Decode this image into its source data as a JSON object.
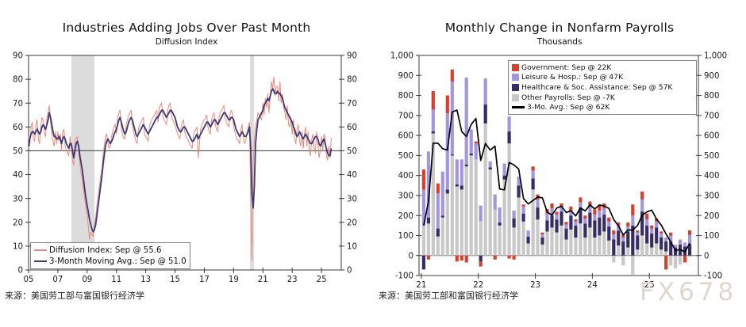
{
  "left_chart": {
    "title": "Industries Adding Jobs Over Past Month",
    "subtitle": "Diffusion Index",
    "source": "来源：美国劳工部与富国银行经济学",
    "legend": [
      {
        "label": "Diffusion Index: Sep @ 55.6",
        "color": "#E8897C",
        "swatch": "line"
      },
      {
        "label": "3-Month Moving Avg.: Sep @ 51.0",
        "color": "#3C3873",
        "swatch": "line"
      }
    ]
  },
  "right_chart": {
    "title": "Monthly Change in Nonfarm Payrolls",
    "subtitle": "Thousands",
    "source": "来源：美国劳工部和富国银行经济学",
    "legend": [
      {
        "label": "Government: Sep @ 22K",
        "color": "#D8402C",
        "swatch": "box"
      },
      {
        "label": "Leisure & Hosp.: Sep @ 47K",
        "color": "#A495E0",
        "swatch": "box"
      },
      {
        "label": "Healthcare & Soc. Assistance: Sep @ 57K",
        "color": "#342D69",
        "swatch": "box"
      },
      {
        "label": "Other Payrolls: Sep @ -7K",
        "color": "#C8C8C8",
        "swatch": "box"
      },
      {
        "label": "3-Mo. Avg.: Sep @ 62K",
        "color": "#000000",
        "swatch": "line"
      }
    ]
  },
  "watermark": "FX678",
  "chart_data": [
    {
      "type": "line",
      "title": "Industries Adding Jobs Over Past Month",
      "subtitle": "Diffusion Index",
      "x_start": 2005.0,
      "x_step_months": 1,
      "xlim": [
        2005.0,
        2026.35
      ],
      "ylim": [
        0,
        90
      ],
      "y_ticks": [
        0,
        10,
        20,
        30,
        40,
        50,
        60,
        70,
        80,
        90
      ],
      "x_tick_years": [
        2005,
        2007,
        2009,
        2011,
        2013,
        2015,
        2017,
        2019,
        2021,
        2023,
        2025
      ],
      "x_tick_labels": [
        "05",
        "07",
        "09",
        "11",
        "13",
        "15",
        "17",
        "19",
        "21",
        "23",
        "25"
      ],
      "reference_line": 50,
      "recession_bands": [
        [
          2007.92,
          2009.5
        ],
        [
          2020.12,
          2020.4
        ]
      ],
      "grid": false,
      "legend_position": "lower-left",
      "series": [
        {
          "name": "Diffusion Index",
          "latest": "Sep @ 55.6",
          "color": "#E8897C",
          "width": 1,
          "values": [
            56,
            52,
            60,
            62,
            55,
            54,
            61,
            63,
            55,
            53,
            60,
            64,
            63,
            57,
            56,
            64,
            66,
            69,
            62,
            58,
            54,
            52,
            58,
            53,
            58,
            54,
            57,
            50,
            58,
            59,
            52,
            50,
            49,
            48,
            56,
            51,
            46,
            44,
            54,
            55,
            56,
            49,
            45,
            41,
            38,
            34,
            30,
            26,
            23,
            18,
            13,
            16,
            15,
            14,
            19,
            22,
            27,
            31,
            35,
            39,
            42,
            48,
            52,
            56,
            57,
            53,
            51,
            52,
            56,
            58,
            60,
            61,
            57,
            64,
            66,
            67,
            59,
            57,
            55,
            55,
            61,
            63,
            65,
            66,
            67,
            61,
            58,
            56,
            54,
            53,
            59,
            61,
            62,
            63,
            64,
            57,
            56,
            55,
            54,
            60,
            62,
            63,
            64,
            65,
            66,
            67,
            62,
            68,
            69,
            70,
            65,
            63,
            62,
            61,
            67,
            69,
            70,
            65,
            63,
            62,
            61,
            59,
            57,
            56,
            55,
            60,
            62,
            63,
            58,
            56,
            55,
            54,
            53,
            52,
            51,
            56,
            58,
            59,
            60,
            47,
            53,
            59,
            61,
            62,
            63,
            64,
            65,
            60,
            58,
            57,
            63,
            65,
            66,
            61,
            59,
            58,
            64,
            66,
            67,
            68,
            69,
            64,
            62,
            61,
            60,
            65,
            67,
            66,
            60,
            58,
            56,
            55,
            54,
            53,
            59,
            61,
            55,
            53,
            54,
            58,
            60,
            62,
            30,
            4,
            45,
            55,
            60,
            63,
            66,
            65,
            64,
            63,
            70,
            65,
            72,
            68,
            74,
            66,
            73,
            79,
            76,
            81,
            73,
            77,
            77,
            71,
            79,
            70,
            74,
            68,
            66,
            63,
            69,
            61,
            60,
            64,
            57,
            63,
            55,
            53,
            59,
            61,
            54,
            52,
            58,
            51,
            57,
            60,
            52,
            58,
            50,
            48,
            55,
            57,
            51,
            49,
            58,
            54,
            47,
            50,
            56,
            50,
            57,
            55,
            48,
            46,
            52,
            47,
            55.6
          ]
        },
        {
          "name": "3-Month Moving Avg.",
          "latest": "Sep @ 51.0",
          "color": "#3C3873",
          "width": 1.8,
          "values": [
            52,
            55,
            57,
            58,
            58,
            57,
            58,
            59,
            58,
            57,
            58,
            60,
            61,
            60,
            59,
            61,
            63,
            66,
            64,
            61,
            58,
            56,
            56,
            55,
            55,
            56,
            55,
            53,
            55,
            56,
            55,
            53,
            52,
            51,
            53,
            53,
            50,
            47,
            50,
            53,
            54,
            52,
            48,
            45,
            42,
            38,
            34,
            30,
            27,
            24,
            21,
            19,
            17,
            16,
            17,
            19,
            23,
            27,
            31,
            35,
            39,
            44,
            48,
            52,
            54,
            55,
            54,
            53,
            54,
            55,
            57,
            58,
            59,
            61,
            63,
            64,
            62,
            60,
            58,
            57,
            58,
            60,
            62,
            63,
            64,
            63,
            61,
            59,
            57,
            56,
            57,
            58,
            59,
            60,
            61,
            60,
            59,
            58,
            57,
            58,
            59,
            60,
            61,
            62,
            63,
            64,
            64,
            65,
            66,
            67,
            67,
            66,
            65,
            64,
            65,
            66,
            67,
            67,
            66,
            65,
            64,
            62,
            60,
            59,
            58,
            58,
            59,
            60,
            60,
            59,
            58,
            57,
            56,
            55,
            54,
            54,
            55,
            56,
            57,
            55,
            56,
            57,
            58,
            59,
            60,
            61,
            62,
            62,
            61,
            60,
            61,
            62,
            63,
            63,
            62,
            61,
            62,
            63,
            64,
            65,
            66,
            66,
            65,
            64,
            63,
            63,
            64,
            64,
            63,
            61,
            59,
            58,
            57,
            56,
            57,
            58,
            57,
            56,
            56,
            57,
            58,
            60,
            51,
            32,
            26,
            35,
            53,
            59,
            63,
            64,
            65,
            66,
            67,
            69,
            70,
            71,
            72,
            71,
            73,
            75,
            76,
            75,
            74,
            74,
            75,
            74,
            74,
            73,
            72,
            70,
            68,
            67,
            66,
            65,
            64,
            63,
            62,
            60,
            59,
            57,
            56,
            57,
            58,
            57,
            56,
            55,
            56,
            57,
            56,
            55,
            54,
            53,
            53,
            54,
            55,
            56,
            56,
            55,
            53,
            52,
            53,
            54,
            55,
            53,
            51,
            49,
            48,
            48,
            51
          ]
        }
      ]
    },
    {
      "type": "stacked_bar_line",
      "title": "Monthly Change in Nonfarm Payrolls",
      "subtitle": "Thousands",
      "x_start": 2021.0,
      "x_step_months": 1,
      "xlim": [
        2020.96,
        2025.86
      ],
      "ylim": [
        -100,
        1000
      ],
      "y_ticks": [
        -100,
        0,
        100,
        200,
        300,
        400,
        500,
        600,
        700,
        800,
        900,
        1000
      ],
      "y_tick_labels": [
        "-100",
        "0",
        "100",
        "200",
        "300",
        "400",
        "500",
        "600",
        "700",
        "800",
        "900",
        "1,000"
      ],
      "x_tick_years": [
        2021,
        2022,
        2023,
        2024,
        2025
      ],
      "x_tick_labels": [
        "21",
        "22",
        "23",
        "24",
        "25"
      ],
      "grid": false,
      "legend_position": "upper-right",
      "stack_order": [
        "other",
        "healthcare",
        "leisure",
        "government"
      ],
      "bar_series": {
        "government": {
          "name": "Government",
          "latest": "Sep @ 22K",
          "color": "#D8402C",
          "values": [
            100,
            -20,
            92,
            50,
            0,
            90,
            60,
            -30,
            -25,
            -35,
            0,
            10,
            -25,
            0,
            0,
            -20,
            0,
            0,
            -15,
            -20,
            0,
            10,
            0,
            20,
            25,
            10,
            22,
            25,
            13,
            15,
            13,
            20,
            10,
            25,
            15,
            25,
            25,
            30,
            25,
            20,
            20,
            15,
            15,
            20,
            55,
            10,
            40,
            30,
            15,
            15,
            10,
            -70,
            15,
            0,
            0,
            -35,
            22
          ]
        },
        "leisure": {
          "name": "Leisure & Hosp.",
          "latest": "Sep @ 47K",
          "color": "#A495E0",
          "values": [
            180,
            330,
            110,
            175,
            220,
            380,
            365,
            125,
            130,
            435,
            120,
            80,
            80,
            130,
            30,
            75,
            75,
            60,
            75,
            40,
            45,
            35,
            30,
            40,
            40,
            15,
            35,
            35,
            25,
            25,
            20,
            25,
            20,
            25,
            25,
            30,
            30,
            35,
            30,
            25,
            25,
            25,
            20,
            25,
            50,
            15,
            60,
            30,
            25,
            30,
            20,
            20,
            30,
            15,
            25,
            20,
            47
          ]
        },
        "healthcare": {
          "name": "Healthcare & Soc. Assistance",
          "latest": "Sep @ 57K",
          "color": "#342D69",
          "values": [
            -70,
            30,
            10,
            40,
            10,
            20,
            5,
            10,
            20,
            10,
            10,
            0,
            -30,
            95,
            10,
            0,
            15,
            20,
            60,
            45,
            60,
            40,
            35,
            55,
            60,
            35,
            55,
            60,
            65,
            70,
            55,
            70,
            60,
            80,
            70,
            75,
            85,
            90,
            85,
            70,
            80,
            75,
            70,
            80,
            150,
            70,
            120,
            90,
            70,
            80,
            60,
            50,
            70,
            40,
            55,
            45,
            57
          ]
        },
        "other": {
          "name": "Other Payrolls",
          "latest": "Sep @ -7K",
          "color": "#C8C8C8",
          "values": [
            150,
            160,
            610,
            95,
            190,
            310,
            500,
            345,
            330,
            445,
            500,
            480,
            170,
            660,
            430,
            230,
            150,
            380,
            560,
            140,
            290,
            170,
            60,
            330,
            180,
            55,
            120,
            140,
            115,
            150,
            80,
            130,
            90,
            160,
            90,
            140,
            90,
            100,
            120,
            75,
            -35,
            50,
            -50,
            40,
            -95,
            30,
            100,
            60,
            40,
            60,
            30,
            20,
            -50,
            -65,
            -45,
            0,
            -7
          ]
        }
      },
      "line_series": {
        "name": "3-Mo. Avg.",
        "latest": "Sep @ 62K",
        "color": "#000000",
        "values": [
          150,
          270,
          561,
          561,
          534,
          527,
          717,
          727,
          620,
          595,
          655,
          685,
          475,
          560,
          527,
          547,
          332,
          328,
          465,
          453,
          432,
          285,
          258,
          275,
          292,
          288,
          217,
          202,
          237,
          246,
          215,
          224,
          198,
          238,
          223,
          253,
          233,
          252,
          248,
          235,
          180,
          148,
          103,
          128,
          127,
          150,
          202,
          218,
          227,
          182,
          152,
          108,
          68,
          25,
          30,
          18,
          62
        ]
      }
    }
  ]
}
